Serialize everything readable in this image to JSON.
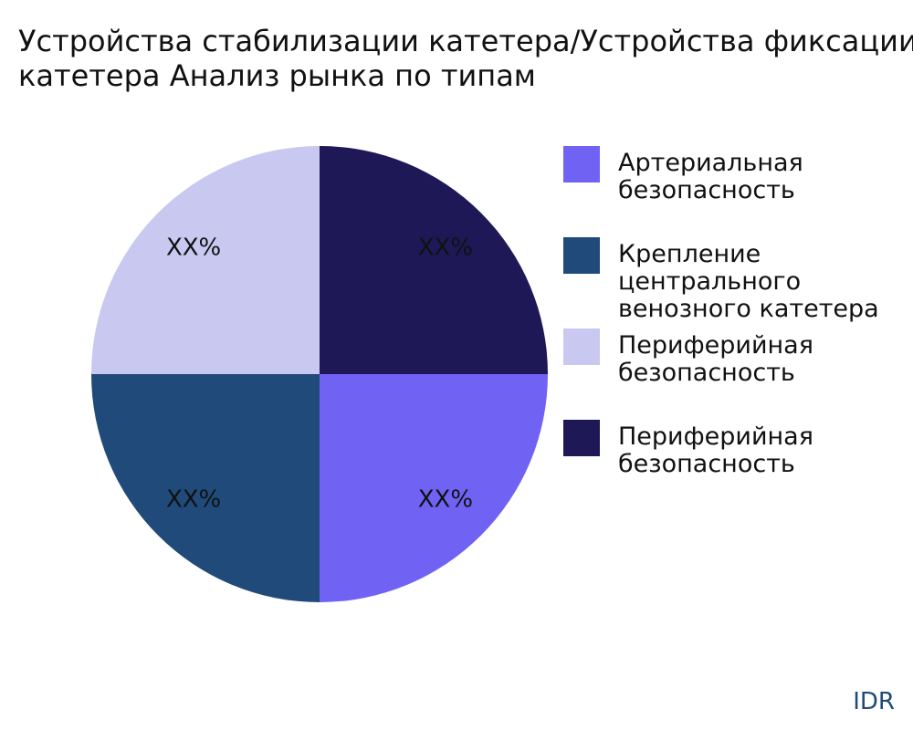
{
  "chart_data": {
    "type": "pie",
    "title": "Устройства стабилизации катетера/Устройства фиксации катетера Анализ рынка по типам",
    "categories": [
      "Артериальная безопасность",
      "Крепление центрального венозного катетера",
      "Периферийная безопасность",
      "Периферийная безопасность"
    ],
    "values": [
      25,
      25,
      25,
      25
    ],
    "value_labels": [
      "XX%",
      "XX%",
      "XX%",
      "XX%"
    ],
    "colors": [
      "#7063f3",
      "#1f4a7a",
      "#c8c8f0",
      "#1e1856"
    ],
    "legend": "right",
    "watermark": "IDR"
  }
}
